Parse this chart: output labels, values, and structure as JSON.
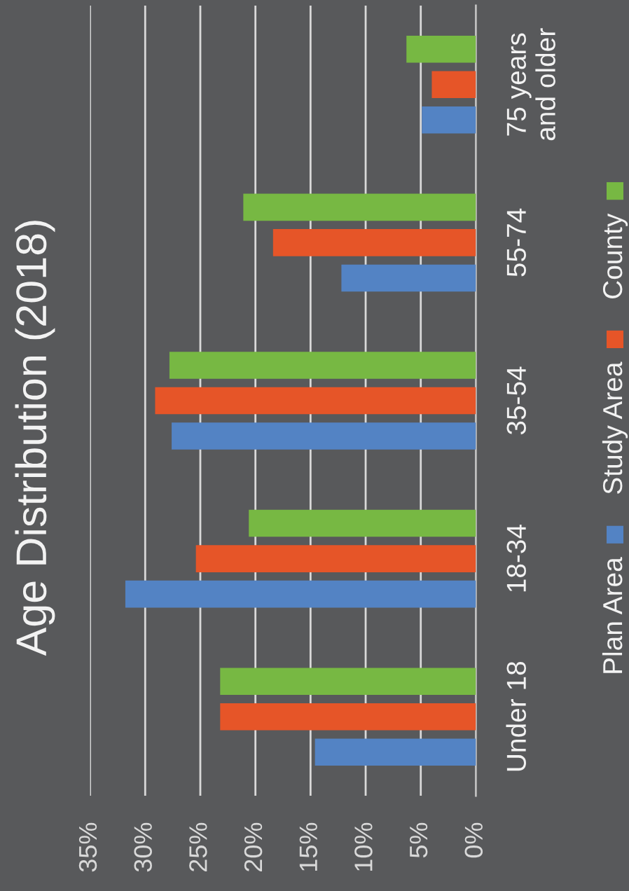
{
  "chart_data": {
    "type": "bar",
    "orientation": "horizontal",
    "title": "Age Distribution (2018)",
    "categories": [
      "75 years\nand older",
      "55-74",
      "35-54",
      "18-34",
      "Under 18"
    ],
    "series": [
      {
        "name": "Plan Area",
        "color": "#5383c4",
        "values": [
          4.9,
          12.2,
          27.6,
          31.8,
          14.6
        ]
      },
      {
        "name": "Study Area",
        "color": "#e65528",
        "values": [
          4.0,
          18.4,
          29.1,
          25.4,
          23.2
        ]
      },
      {
        "name": "County",
        "color": "#77b843",
        "values": [
          6.3,
          21.1,
          27.8,
          20.6,
          23.2
        ]
      }
    ],
    "xlim": [
      35,
      0
    ],
    "xticks": [
      {
        "value": 35,
        "label": "35%"
      },
      {
        "value": 30,
        "label": "30%"
      },
      {
        "value": 25,
        "label": "25%"
      },
      {
        "value": 20,
        "label": "20%"
      },
      {
        "value": 15,
        "label": "15%"
      },
      {
        "value": 10,
        "label": "10%"
      },
      {
        "value": 5,
        "label": "5%"
      },
      {
        "value": 0,
        "label": "0%"
      }
    ],
    "grid": "x",
    "legend": "right"
  }
}
